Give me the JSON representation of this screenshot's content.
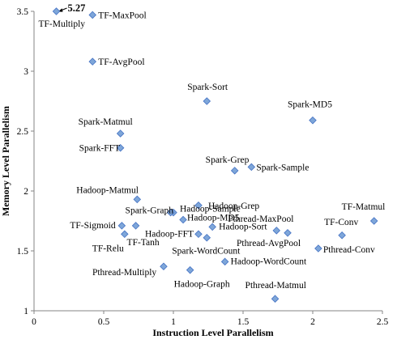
{
  "chart_data": {
    "type": "scatter",
    "title": "",
    "xlabel": "Instruction Level Parallelism",
    "ylabel": "Memory Level Parallelism",
    "xlim": [
      0,
      2.5
    ],
    "ylim": [
      1,
      3.5
    ],
    "xticks": [
      0,
      0.5,
      1,
      1.5,
      2,
      2.5
    ],
    "yticks": [
      1,
      1.5,
      2,
      2.5,
      3,
      3.5
    ],
    "xtick_labels": [
      "0",
      "0.5",
      "1",
      "1.5",
      "2",
      "2.5"
    ],
    "ytick_labels": [
      "1",
      "1.5",
      "2",
      "2.5",
      "3",
      "3.5"
    ],
    "grid": false,
    "legend": "none",
    "marker": {
      "shape": "diamond",
      "fill": "#7ea6d9",
      "stroke": "#4472c4"
    },
    "points": [
      {
        "label": "TF-Multiply",
        "x": 0.16,
        "y": 3.5
      },
      {
        "label": "TF-MaxPool",
        "x": 0.42,
        "y": 3.47
      },
      {
        "label": "TF-AvgPool",
        "x": 0.42,
        "y": 3.08
      },
      {
        "label": "Spark-Sort",
        "x": 1.24,
        "y": 2.75
      },
      {
        "label": "Spark-MD5",
        "x": 2.0,
        "y": 2.59
      },
      {
        "label": "Spark-Matmul",
        "x": 0.62,
        "y": 2.48
      },
      {
        "label": "Spark-FFT",
        "x": 0.62,
        "y": 2.36
      },
      {
        "label": "Spark-Grep",
        "x": 1.44,
        "y": 2.17
      },
      {
        "label": "Spark-Sample",
        "x": 1.56,
        "y": 2.2
      },
      {
        "label": "Hadoop-Matmul",
        "x": 0.74,
        "y": 1.93
      },
      {
        "label": "Hadoop-Sample",
        "x": 1.0,
        "y": 1.82
      },
      {
        "label": "Hadoop-Grep",
        "x": 1.18,
        "y": 1.88
      },
      {
        "label": "Spark-Graph",
        "x": 0.98,
        "y": 1.82
      },
      {
        "label": "Hadoop-MD5",
        "x": 1.07,
        "y": 1.76
      },
      {
        "label": "TF-Sigmoid",
        "x": 0.63,
        "y": 1.71
      },
      {
        "label": "TF-Relu",
        "x": 0.65,
        "y": 1.64
      },
      {
        "label": "TF-Tanh",
        "x": 0.73,
        "y": 1.71
      },
      {
        "label": "Hadoop-FFT",
        "x": 1.18,
        "y": 1.64
      },
      {
        "label": "Hadoop-Sort",
        "x": 1.28,
        "y": 1.7
      },
      {
        "label": "Spark-WordCount",
        "x": 1.24,
        "y": 1.61
      },
      {
        "label": "Hadoop-WordCount",
        "x": 1.37,
        "y": 1.41
      },
      {
        "label": "Pthread-Multiply",
        "x": 0.93,
        "y": 1.37
      },
      {
        "label": "Hadoop-Graph",
        "x": 1.12,
        "y": 1.34
      },
      {
        "label": "Pthread-MaxPool",
        "x": 1.74,
        "y": 1.67
      },
      {
        "label": "Pthread-AvgPool",
        "x": 1.82,
        "y": 1.65
      },
      {
        "label": "TF-Conv",
        "x": 2.21,
        "y": 1.63
      },
      {
        "label": "Pthread-Conv",
        "x": 2.04,
        "y": 1.52
      },
      {
        "label": "TF-Matmul",
        "x": 2.44,
        "y": 1.75
      },
      {
        "label": "Pthread-Matmul",
        "x": 1.73,
        "y": 1.1
      }
    ],
    "annotations": [
      {
        "text": "5.27",
        "target": "TF-Multiply"
      }
    ]
  }
}
